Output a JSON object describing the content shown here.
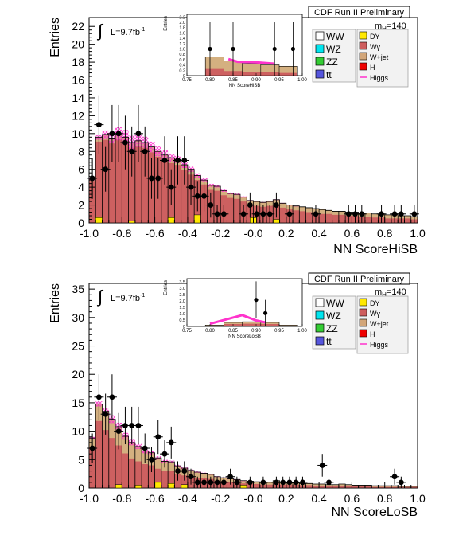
{
  "palette": {
    "WW": "#ffffff",
    "WZ": "#00e5ee",
    "ZZ": "#33cc33",
    "tt": "#5555dd",
    "DY": "#ffe800",
    "Wg": "#cd5c5c",
    "Wjet": "#d2a679",
    "H": "#ee0000",
    "Higgs": "#ff33cc",
    "Wg_fill": "#cd6060",
    "Wjet_fill": "#d4b080"
  },
  "chart_data": [
    {
      "type": "bar",
      "panel": "hisb",
      "header": "CDF Run II Preliminary",
      "ylabel": "Entries",
      "xlabel": "NN ScoreHiSB",
      "lumi": "L=9.7fb",
      "lumi_sup": "-1",
      "mass_label": "m",
      "mass_sub": "H",
      "mass_value": "=140",
      "xlim": [
        -1.0,
        1.0
      ],
      "ylim": [
        0,
        23
      ],
      "xticks": [
        -1.0,
        -0.8,
        -0.6,
        -0.4,
        -0.2,
        -0.0,
        0.2,
        0.4,
        0.6,
        0.8,
        1.0
      ],
      "xtick_labels": [
        "-1.0",
        "-0.8",
        "-0.6",
        "-0.4",
        "-0.2",
        "-0.0",
        "0.2",
        "0.4",
        "0.6",
        "0.8",
        "1.0"
      ],
      "yticks": [
        0,
        2,
        4,
        6,
        8,
        10,
        12,
        14,
        16,
        18,
        20,
        22
      ],
      "ytick_labels": [
        "0",
        "2",
        "4",
        "6",
        "8",
        "10",
        "12",
        "14",
        "16",
        "18",
        "20",
        "22"
      ],
      "bin_width": 0.04,
      "bkg_total": [
        4.9,
        9.6,
        9.9,
        9.5,
        10.0,
        9.6,
        9.0,
        9.2,
        9.0,
        8.5,
        8.0,
        7.6,
        7.3,
        7.1,
        6.5,
        6.0,
        5.3,
        4.8,
        4.2,
        4.1,
        3.6,
        3.3,
        3.2,
        2.9,
        2.5,
        2.4,
        2.3,
        2.4,
        2.6,
        2.2,
        2.0,
        1.9,
        1.8,
        1.7,
        1.6,
        1.5,
        1.4,
        1.3,
        1.3,
        1.2,
        1.2,
        1.1,
        1.1,
        1.0,
        1.0,
        0.9,
        0.9,
        0.8,
        0.8,
        0.7
      ],
      "wjet": [
        0.2,
        0.5,
        0.6,
        0.6,
        0.6,
        0.6,
        0.6,
        0.6,
        0.6,
        0.6,
        0.6,
        0.6,
        0.6,
        0.6,
        0.6,
        0.6,
        0.5,
        0.5,
        0.5,
        0.5,
        0.5,
        0.5,
        0.5,
        0.5,
        0.5,
        0.5,
        0.5,
        0.5,
        0.6,
        0.5,
        0.5,
        0.5,
        0.5,
        0.5,
        0.5,
        0.5,
        0.4,
        0.4,
        0.4,
        0.4,
        0.4,
        0.4,
        0.4,
        0.4,
        0.4,
        0.4,
        0.4,
        0.3,
        0.3,
        0.3
      ],
      "higgs": [
        0.3,
        0.6,
        0.9,
        1.2,
        1.5,
        1.6,
        1.5,
        1.4,
        1.3,
        1.2,
        1.1,
        1.0,
        0.9,
        0.8,
        0.7,
        0.6,
        0.5,
        0.4,
        0.35,
        0.3,
        0.25,
        0.2,
        0.18,
        0.15,
        0.12,
        0.1,
        0.1,
        0.1,
        0.1,
        0.08,
        0.07,
        0.06,
        0.05,
        0.05,
        0.05,
        0.04,
        0.04,
        0.03,
        0.03,
        0.03,
        0.03,
        0.02,
        0.02,
        0.02,
        0.02,
        0.02,
        0.02,
        0.02,
        0.02,
        0.02
      ],
      "dy": [
        {
          "x": -0.94,
          "y": 0.6
        },
        {
          "x": -0.74,
          "y": 0.2
        },
        {
          "x": -0.5,
          "y": 0.6
        },
        {
          "x": -0.34,
          "y": 0.9
        },
        {
          "x": 0.0,
          "y": 0.6
        },
        {
          "x": 0.14,
          "y": 0.4
        }
      ],
      "data_points": [
        {
          "x": -0.98,
          "y": 5,
          "e": 2.3
        },
        {
          "x": -0.94,
          "y": 11,
          "e": 3.3
        },
        {
          "x": -0.9,
          "y": 6,
          "e": 2.5
        },
        {
          "x": -0.86,
          "y": 10,
          "e": 3.2
        },
        {
          "x": -0.82,
          "y": 10,
          "e": 3.2
        },
        {
          "x": -0.78,
          "y": 9,
          "e": 3.0
        },
        {
          "x": -0.74,
          "y": 8,
          "e": 2.8
        },
        {
          "x": -0.7,
          "y": 10,
          "e": 3.2
        },
        {
          "x": -0.66,
          "y": 8,
          "e": 2.8
        },
        {
          "x": -0.62,
          "y": 5,
          "e": 2.3
        },
        {
          "x": -0.58,
          "y": 5,
          "e": 2.3
        },
        {
          "x": -0.54,
          "y": 7,
          "e": 2.7
        },
        {
          "x": -0.5,
          "y": 4,
          "e": 2.0
        },
        {
          "x": -0.46,
          "y": 7,
          "e": 2.7
        },
        {
          "x": -0.42,
          "y": 7,
          "e": 2.7
        },
        {
          "x": -0.38,
          "y": 4,
          "e": 2.0
        },
        {
          "x": -0.34,
          "y": 3,
          "e": 1.7
        },
        {
          "x": -0.3,
          "y": 3,
          "e": 1.7
        },
        {
          "x": -0.26,
          "y": 2,
          "e": 1.4
        },
        {
          "x": -0.22,
          "y": 1,
          "e": 1.0
        },
        {
          "x": -0.18,
          "y": 1,
          "e": 1.0
        },
        {
          "x": -0.06,
          "y": 1,
          "e": 1.0
        },
        {
          "x": -0.02,
          "y": 2,
          "e": 1.4
        },
        {
          "x": 0.02,
          "y": 1,
          "e": 1.0
        },
        {
          "x": 0.06,
          "y": 1,
          "e": 1.0
        },
        {
          "x": 0.1,
          "y": 1,
          "e": 1.0
        },
        {
          "x": 0.14,
          "y": 2,
          "e": 1.4
        },
        {
          "x": 0.22,
          "y": 1,
          "e": 1.0
        },
        {
          "x": 0.38,
          "y": 1,
          "e": 1.0
        },
        {
          "x": 0.58,
          "y": 1,
          "e": 1.0
        },
        {
          "x": 0.62,
          "y": 1,
          "e": 1.0
        },
        {
          "x": 0.66,
          "y": 1,
          "e": 1.0
        },
        {
          "x": 0.78,
          "y": 1,
          "e": 1.0
        },
        {
          "x": 0.86,
          "y": 1,
          "e": 1.0
        },
        {
          "x": 0.9,
          "y": 1,
          "e": 1.0
        },
        {
          "x": 0.98,
          "y": 1,
          "e": 1.0
        }
      ],
      "inset": {
        "ylabel": "Entries",
        "xlabel": "NN ScoreHiSB",
        "xlim": [
          0.75,
          1.0
        ],
        "ylim": [
          0,
          2.3
        ],
        "xtick_labels": [
          "0.75",
          "0.80",
          "0.85",
          "0.90",
          "0.95",
          "1.00"
        ],
        "ytick_labels": [
          "0",
          "0.2",
          "0.4",
          "0.6",
          "0.8",
          "1.0",
          "1.2",
          "1.4",
          "1.6",
          "1.8",
          "2.0",
          "2.2"
        ],
        "bkg_total": [
          0.7,
          0.55,
          0.45,
          0.4,
          0.35
        ],
        "wjet": [
          0.45,
          0.38,
          0.32,
          0.28,
          0.25
        ],
        "higgs": [
          {
            "x": 0.84,
            "y": 0.62
          },
          {
            "x": 0.86,
            "y": 0.52
          },
          {
            "x": 0.9,
            "y": 0.5
          },
          {
            "x": 0.94,
            "y": 0.45
          }
        ],
        "data_points": [
          {
            "x": 0.8,
            "y": 1,
            "e": 1.0
          },
          {
            "x": 0.85,
            "y": 1,
            "e": 1.0
          },
          {
            "x": 0.94,
            "y": 1,
            "e": 1.0
          },
          {
            "x": 0.98,
            "y": 1,
            "e": 1.0
          }
        ]
      },
      "legend_left": [
        {
          "label": "WW",
          "key": "WW"
        },
        {
          "label": "WZ",
          "key": "WZ"
        },
        {
          "label": "ZZ",
          "key": "ZZ"
        },
        {
          "label": "t",
          "sub": "t",
          "key": "tt"
        }
      ],
      "legend_right": [
        {
          "label": "DY",
          "key": "DY"
        },
        {
          "label": "Wγ",
          "key": "Wg"
        },
        {
          "label": "W+jet",
          "key": "Wjet"
        },
        {
          "label": "H",
          "key": "H"
        },
        {
          "label": "Higgs",
          "key": "Higgs",
          "line": true
        }
      ]
    },
    {
      "type": "bar",
      "panel": "losb",
      "header": "CDF Run II Preliminary",
      "ylabel": "Entries",
      "xlabel": "NN ScoreLoSB",
      "lumi": "L=9.7fb",
      "lumi_sup": "-1",
      "mass_label": "m",
      "mass_sub": "H",
      "mass_value": "=140",
      "xlim": [
        -1.0,
        1.0
      ],
      "ylim": [
        0,
        36
      ],
      "xticks": [
        -1.0,
        -0.8,
        -0.6,
        -0.4,
        -0.2,
        -0.0,
        0.2,
        0.4,
        0.6,
        0.8,
        1.0
      ],
      "xtick_labels": [
        "-1.0",
        "-0.8",
        "-0.6",
        "-0.4",
        "-0.2",
        "-0.0",
        "0.2",
        "0.4",
        "0.6",
        "0.8",
        "1.0"
      ],
      "yticks": [
        0,
        5,
        10,
        15,
        20,
        25,
        30,
        35
      ],
      "ytick_labels": [
        "0",
        "5",
        "10",
        "15",
        "20",
        "25",
        "30",
        "35"
      ],
      "bin_width": 0.04,
      "bkg_total": [
        8.8,
        14.8,
        13.5,
        12.1,
        10.8,
        9.1,
        8.0,
        7.3,
        6.5,
        6.2,
        5.3,
        4.7,
        4.6,
        3.9,
        3.5,
        3.1,
        2.8,
        2.6,
        2.4,
        2.0,
        1.8,
        1.6,
        1.5,
        1.3,
        1.2,
        1.1,
        1.0,
        1.0,
        1.3,
        1.0,
        0.9,
        0.9,
        0.8,
        0.8,
        0.7,
        0.7,
        0.6,
        0.6,
        0.7,
        0.6,
        0.5,
        0.5,
        0.5,
        0.4,
        0.4,
        0.4,
        0.4,
        0.3,
        0.3,
        0.3
      ],
      "wjet": [
        1.6,
        3.0,
        3.3,
        3.3,
        3.3,
        3.0,
        2.8,
        2.6,
        2.3,
        2.2,
        1.9,
        1.7,
        1.6,
        1.4,
        1.3,
        1.1,
        1.0,
        0.9,
        0.8,
        0.7,
        0.6,
        0.6,
        0.5,
        0.5,
        0.4,
        0.4,
        0.4,
        0.4,
        0.5,
        0.4,
        0.3,
        0.3,
        0.3,
        0.3,
        0.3,
        0.3,
        0.2,
        0.2,
        0.3,
        0.2,
        0.2,
        0.2,
        0.2,
        0.2,
        0.2,
        0.2,
        0.2,
        0.1,
        0.1,
        0.1
      ],
      "higgs": [
        0.5,
        0.9,
        1.2,
        1.4,
        1.4,
        1.2,
        1.0,
        0.9,
        0.8,
        0.7,
        0.6,
        0.5,
        0.45,
        0.4,
        0.35,
        0.3,
        0.25,
        0.2,
        0.18,
        0.15,
        0.12,
        0.1,
        0.1,
        0.08,
        0.07,
        0.06,
        0.05,
        0.05,
        0.05,
        0.04,
        0.04,
        0.03,
        0.03,
        0.03,
        0.03,
        0.02,
        0.02,
        0.02,
        0.02,
        0.02,
        0.02,
        0.02,
        0.02,
        0.02,
        0.02,
        0.02,
        0.02,
        0.02,
        0.02,
        0.02
      ],
      "dy": [
        {
          "x": -0.82,
          "y": 0.6
        },
        {
          "x": -0.7,
          "y": 0.5
        },
        {
          "x": -0.58,
          "y": 1.0
        },
        {
          "x": -0.5,
          "y": 0.8
        },
        {
          "x": -0.42,
          "y": 0.6
        },
        {
          "x": -0.06,
          "y": 0.5
        }
      ],
      "data_points": [
        {
          "x": -0.98,
          "y": 7,
          "e": 2.6
        },
        {
          "x": -0.94,
          "y": 16,
          "e": 4.0
        },
        {
          "x": -0.9,
          "y": 13,
          "e": 3.6
        },
        {
          "x": -0.86,
          "y": 16,
          "e": 4.0
        },
        {
          "x": -0.82,
          "y": 10,
          "e": 3.2
        },
        {
          "x": -0.78,
          "y": 11,
          "e": 3.3
        },
        {
          "x": -0.74,
          "y": 11,
          "e": 3.3
        },
        {
          "x": -0.7,
          "y": 11,
          "e": 3.3
        },
        {
          "x": -0.66,
          "y": 7,
          "e": 2.6
        },
        {
          "x": -0.62,
          "y": 5,
          "e": 2.2
        },
        {
          "x": -0.58,
          "y": 9,
          "e": 3.0
        },
        {
          "x": -0.54,
          "y": 6,
          "e": 2.4
        },
        {
          "x": -0.5,
          "y": 8,
          "e": 2.8
        },
        {
          "x": -0.46,
          "y": 3,
          "e": 1.7
        },
        {
          "x": -0.42,
          "y": 3,
          "e": 1.7
        },
        {
          "x": -0.38,
          "y": 2,
          "e": 1.4
        },
        {
          "x": -0.34,
          "y": 1,
          "e": 1.0
        },
        {
          "x": -0.3,
          "y": 1,
          "e": 1.0
        },
        {
          "x": -0.26,
          "y": 1,
          "e": 1.0
        },
        {
          "x": -0.22,
          "y": 1,
          "e": 1.0
        },
        {
          "x": -0.18,
          "y": 1,
          "e": 1.0
        },
        {
          "x": -0.14,
          "y": 2,
          "e": 1.4
        },
        {
          "x": -0.1,
          "y": 1,
          "e": 1.0
        },
        {
          "x": -0.02,
          "y": 1,
          "e": 1.0
        },
        {
          "x": 0.06,
          "y": 1,
          "e": 1.0
        },
        {
          "x": 0.14,
          "y": 1,
          "e": 1.0
        },
        {
          "x": 0.18,
          "y": 1,
          "e": 1.0
        },
        {
          "x": 0.22,
          "y": 1,
          "e": 1.0
        },
        {
          "x": 0.26,
          "y": 1,
          "e": 1.0
        },
        {
          "x": 0.3,
          "y": 1,
          "e": 1.0
        },
        {
          "x": 0.42,
          "y": 4,
          "e": 2.0
        },
        {
          "x": 0.46,
          "y": 1,
          "e": 1.0
        },
        {
          "x": 0.86,
          "y": 2,
          "e": 1.4
        },
        {
          "x": 0.9,
          "y": 1,
          "e": 1.0
        }
      ],
      "inset": {
        "ylabel": "Entries",
        "xlabel": "NN ScoreLoSB",
        "xlim": [
          0.75,
          1.0
        ],
        "ylim": [
          0,
          3.6
        ],
        "xtick_labels": [
          "0.75",
          "0.80",
          "0.85",
          "0.90",
          "0.95",
          "1.00"
        ],
        "ytick_labels": [
          "0",
          "0.5",
          "1.0",
          "1.5",
          "2.0",
          "2.5",
          "3.0",
          "3.5"
        ],
        "bkg_total": [
          0.1,
          0.3,
          0.35,
          0.3,
          0.1
        ],
        "wjet": [
          0.05,
          0.12,
          0.15,
          0.12,
          0.05
        ],
        "higgs": [
          {
            "x": 0.8,
            "y": 0.2
          },
          {
            "x": 0.87,
            "y": 0.85
          },
          {
            "x": 0.9,
            "y": 0.45
          },
          {
            "x": 0.92,
            "y": 0.3
          }
        ],
        "data_points": [
          {
            "x": 0.9,
            "y": 2,
            "e": 1.4
          },
          {
            "x": 0.92,
            "y": 1,
            "e": 1.0
          }
        ]
      },
      "legend_left": [
        {
          "label": "WW",
          "key": "WW"
        },
        {
          "label": "WZ",
          "key": "WZ"
        },
        {
          "label": "ZZ",
          "key": "ZZ"
        },
        {
          "label": "t",
          "sub": "t",
          "key": "tt"
        }
      ],
      "legend_right": [
        {
          "label": "DY",
          "key": "DY"
        },
        {
          "label": "Wγ",
          "key": "Wg"
        },
        {
          "label": "W+jet",
          "key": "Wjet"
        },
        {
          "label": "H",
          "key": "H"
        },
        {
          "label": "Higgs",
          "key": "Higgs",
          "line": true
        }
      ]
    }
  ]
}
